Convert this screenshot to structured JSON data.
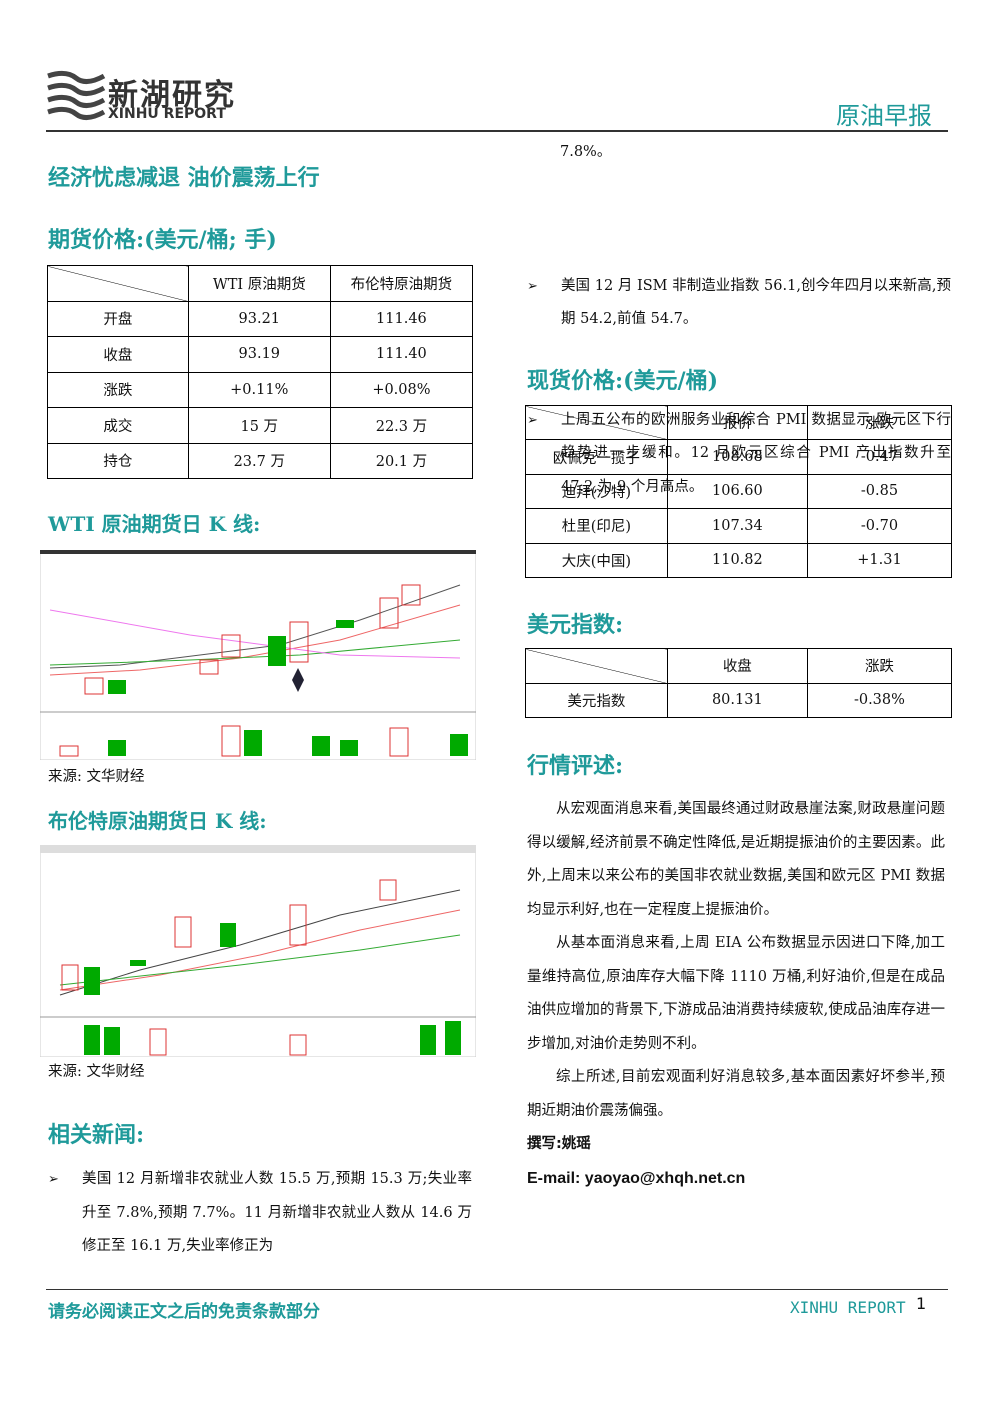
{
  "header": {
    "logo_cn": "新湖研究",
    "logo_en": "XINHU REPORT",
    "report_type": "原油早报"
  },
  "title": "经济忧虑减退 油价震荡上行",
  "futures": {
    "heading": "期货价格:(美元/桶; 手)",
    "columns": [
      "WTI 原油期货",
      "布伦特原油期货"
    ],
    "rows": [
      [
        "开盘",
        "93.21",
        "111.46"
      ],
      [
        "收盘",
        "93.19",
        "111.40"
      ],
      [
        "涨跌",
        "+0.11%",
        "+0.08%"
      ],
      [
        "成交",
        "15 万",
        "22.3 万"
      ],
      [
        "持仓",
        "23.7 万",
        "20.1 万"
      ]
    ]
  },
  "wti_chart": {
    "heading": "WTI 原油期货日 K 线:",
    "source": "来源: 文华财经"
  },
  "brent_chart": {
    "heading": "布伦特原油期货日 K 线:",
    "source": "来源: 文华财经"
  },
  "news": {
    "heading": "相关新闻:",
    "items": [
      "美国 12 月新增非农就业人数 15.5 万,预期 15.3 万;失业率升至 7.8%,预期 7.7%。11 月新增非农就业人数从 14.6 万修正至 16.1 万,失业率修正为",
      "美国 12 月 ISM 非制造业指数 56.1,创今年四月以来新高,预期 54.2,前值 54.7。",
      "上周五公布的欧洲服务业和综合 PMI 数据显示,欧元区下行趋势进一步缓和。12 月欧元区综合 PMI 产出指数升至 47.2,为 9 个月高点。"
    ],
    "continuation": "7.8%。"
  },
  "spot": {
    "heading": "现货价格:(美元/桶)",
    "columns": [
      "报价",
      "涨跌"
    ],
    "rows": [
      [
        "欧佩克一揽子",
        "108.68",
        "-0.47"
      ],
      [
        "迪拜(沙特)",
        "106.60",
        "-0.85"
      ],
      [
        "杜里(印尼)",
        "107.34",
        "-0.70"
      ],
      [
        "大庆(中国)",
        "110.82",
        "+1.31"
      ]
    ]
  },
  "usd": {
    "heading": "美元指数:",
    "columns": [
      "收盘",
      "涨跌"
    ],
    "rows": [
      [
        "美元指数",
        "80.131",
        "-0.38%"
      ]
    ]
  },
  "commentary": {
    "heading": "行情评述:",
    "paragraphs": [
      "从宏观面消息来看,美国最终通过财政悬崖法案,财政悬崖问题得以缓解,经济前景不确定性降低,是近期提振油价的主要因素。此外,上周末以来公布的美国非农就业数据,美国和欧元区 PMI 数据均显示利好,也在一定程度上提振油价。",
      "从基本面消息来看,上周 EIA 公布数据显示因进口下降,加工量维持高位,原油库存大幅下降 1110 万桶,利好油价,但是在成品油供应增加的背景下,下游成品油消费持续疲软,使成品油库存进一步增加,对油价走势则不利。",
      "综上所述,目前宏观面利好消息较多,基本面因素好坏参半,预期近期油价震荡偏强。"
    ],
    "author": "撰写:姚瑶",
    "email": "E-mail: yaoyao@xhqh.net.cn"
  },
  "footer": {
    "disclaimer": "请务必阅读正文之后的免责条款部分",
    "brand": "XINHU REPORT",
    "page": "1"
  }
}
